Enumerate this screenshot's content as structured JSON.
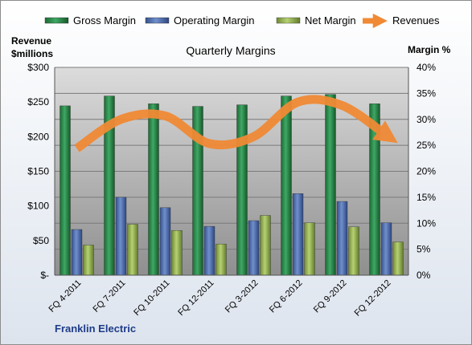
{
  "chart_data": {
    "type": "bar",
    "title": "Quarterly Margins",
    "company": "Franklin Electric",
    "y_left_label_line1": "Revenue",
    "y_left_label_line2": "$millions",
    "y_right_label": "Margin %",
    "categories": [
      "FQ 4-2011",
      "FQ 7-2011",
      "FQ 10-2011",
      "FQ 12-2011",
      "FQ 3-2012",
      "FQ 6-2012",
      "FQ 9-2012",
      "FQ 12-2012"
    ],
    "y_left_ticks": [
      "$-",
      "$50",
      "$100",
      "$150",
      "$200",
      "$250",
      "$300"
    ],
    "y_right_ticks": [
      "0%",
      "5%",
      "10%",
      "15%",
      "20%",
      "25%",
      "30%",
      "35%",
      "40%"
    ],
    "ylim_left": [
      0,
      300
    ],
    "ylim_right": [
      0,
      40
    ],
    "grid": true,
    "legend_position": "top",
    "series": [
      {
        "name": "Gross Margin",
        "kind": "bar",
        "axis": "right",
        "color": "#2e8b4a",
        "values": [
          32.6,
          34.5,
          33.0,
          32.5,
          32.8,
          34.5,
          34.8,
          33.0
        ]
      },
      {
        "name": "Operating Margin",
        "kind": "bar",
        "axis": "right",
        "color": "#4f71b5",
        "values": [
          8.8,
          15.0,
          13.0,
          9.4,
          10.5,
          15.7,
          14.2,
          10.1
        ]
      },
      {
        "name": "Net Margin",
        "kind": "bar",
        "axis": "right",
        "color": "#9bbb59",
        "values": [
          5.8,
          9.8,
          8.6,
          6.0,
          11.5,
          10.1,
          9.3,
          6.4
        ]
      },
      {
        "name": "Revenues",
        "kind": "line",
        "axis": "left",
        "color": "#f08a35",
        "values": [
          183,
          225,
          230,
          190,
          200,
          250,
          245,
          202
        ]
      }
    ]
  }
}
